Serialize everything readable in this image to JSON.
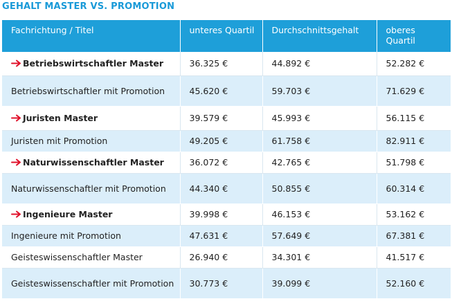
{
  "title": "GEHALT MASTER VS. PROMOTION",
  "colors": {
    "accent": "#1e9fd9",
    "stripe": "#dbeefa",
    "arrow": "#e0102a"
  },
  "headers": [
    "Fachrichtung / Titel",
    "unteres Quartil",
    "Durchschnittsgehalt",
    "oberes Quartil"
  ],
  "rows": [
    {
      "label": "Betriebswirtschaftler Master",
      "lower": "36.325 €",
      "avg": "44.892 €",
      "upper": "52.282 €",
      "highlight": true,
      "arrow_icon": "red-arrow-icon"
    },
    {
      "label": "Betriebswirtschaftler mit Promotion",
      "lower": "45.620 €",
      "avg": "59.703 €",
      "upper": "71.629 €",
      "highlight": false
    },
    {
      "label": "Juristen Master",
      "lower": "39.579 €",
      "avg": "45.993 €",
      "upper": "56.115 €",
      "highlight": true,
      "arrow_icon": "red-arrow-icon"
    },
    {
      "label": "Juristen mit Promotion",
      "lower": "49.205 €",
      "avg": "61.758 €",
      "upper": "82.911 €",
      "highlight": false
    },
    {
      "label": "Naturwissenschaftler Master",
      "lower": "36.072 €",
      "avg": "42.765 €",
      "upper": "51.798 €",
      "highlight": true,
      "arrow_icon": "red-arrow-icon"
    },
    {
      "label": "Naturwissenschaftler mit Promotion",
      "lower": "44.340 €",
      "avg": "50.855 €",
      "upper": "60.314 €",
      "highlight": false
    },
    {
      "label": "Ingenieure Master",
      "lower": "39.998 €",
      "avg": "46.153 €",
      "upper": "53.162 €",
      "highlight": true,
      "arrow_icon": "red-arrow-icon"
    },
    {
      "label": "Ingenieure mit Promotion",
      "lower": "47.631 €",
      "avg": "57.649 €",
      "upper": "67.381 €",
      "highlight": false
    },
    {
      "label": "Geisteswissenschaftler Master",
      "lower": "26.940 €",
      "avg": "34.301 €",
      "upper": "41.517 €",
      "highlight": false
    },
    {
      "label": "Geisteswissenschaftler mit Promotion",
      "lower": "30.773 €",
      "avg": "39.099 €",
      "upper": "52.160 €",
      "highlight": false
    }
  ]
}
